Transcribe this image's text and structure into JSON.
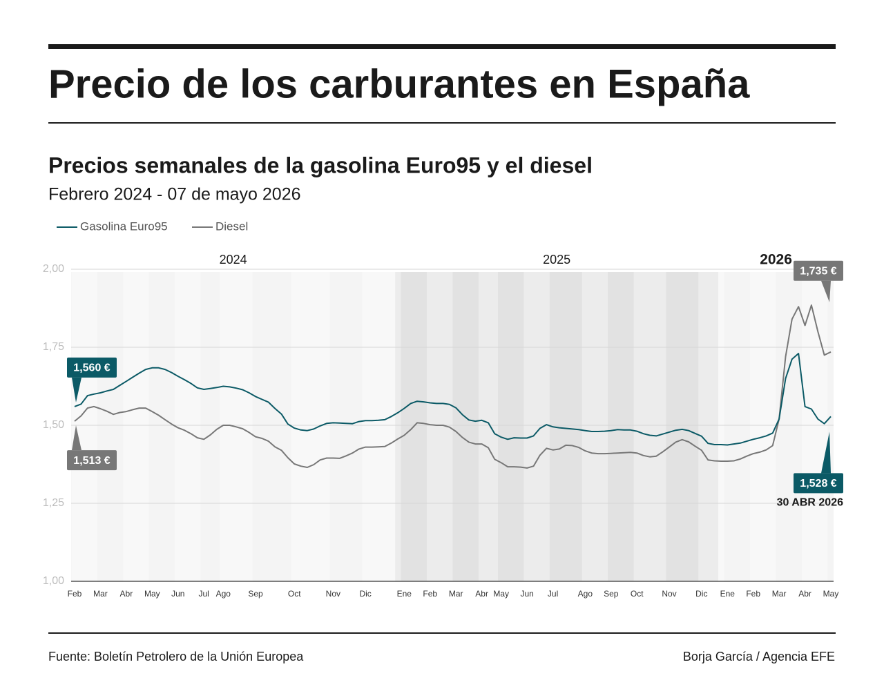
{
  "chart_data": {
    "type": "line",
    "title": "Precio de los carburantes en España",
    "subtitle": "Precios semanales de la gasolina Euro95 y el diesel",
    "period": "Febrero 2024 - 07 de mayo 2026",
    "years": [
      2024,
      2025,
      2026
    ],
    "categories": [
      "Feb",
      null,
      null,
      null,
      "Mar",
      null,
      null,
      null,
      "Abr",
      null,
      null,
      null,
      "May",
      null,
      null,
      null,
      "Jun",
      null,
      null,
      null,
      "Jul",
      null,
      null,
      "Ago",
      null,
      null,
      null,
      null,
      "Sep",
      null,
      null,
      null,
      null,
      null,
      "Oct",
      null,
      null,
      null,
      null,
      null,
      "Nov",
      null,
      null,
      null,
      null,
      "Dic",
      null,
      null,
      null,
      null,
      null,
      "Ene",
      null,
      null,
      null,
      "Feb",
      null,
      null,
      null,
      "Mar",
      null,
      null,
      null,
      "Abr",
      null,
      null,
      "May",
      null,
      null,
      null,
      "Jun",
      null,
      null,
      null,
      "Jul",
      null,
      null,
      null,
      null,
      "Ago",
      null,
      null,
      null,
      "Sep",
      null,
      null,
      null,
      "Oct",
      null,
      null,
      null,
      null,
      "Nov",
      null,
      null,
      null,
      null,
      "Dic",
      null,
      null,
      null,
      "Ene",
      null,
      null,
      null,
      "Feb",
      null,
      null,
      null,
      "Mar",
      null,
      null,
      null,
      "Abr",
      null,
      null,
      null,
      "May"
    ],
    "series": [
      {
        "name": "Gasolina Euro95",
        "color": "#0b5a66",
        "values": [
          1.56,
          1.568,
          1.595,
          1.6,
          1.604,
          1.61,
          1.615,
          1.628,
          1.641,
          1.654,
          1.667,
          1.679,
          1.684,
          1.684,
          1.679,
          1.669,
          1.657,
          1.646,
          1.634,
          1.62,
          1.615,
          1.618,
          1.621,
          1.625,
          1.623,
          1.619,
          1.614,
          1.604,
          1.592,
          1.583,
          1.574,
          1.554,
          1.536,
          1.504,
          1.491,
          1.485,
          1.483,
          1.488,
          1.498,
          1.506,
          1.508,
          1.507,
          1.506,
          1.505,
          1.512,
          1.515,
          1.515,
          1.516,
          1.518,
          1.528,
          1.54,
          1.554,
          1.57,
          1.577,
          1.575,
          1.572,
          1.57,
          1.57,
          1.567,
          1.556,
          1.534,
          1.517,
          1.513,
          1.516,
          1.508,
          1.473,
          1.462,
          1.455,
          1.46,
          1.459,
          1.459,
          1.466,
          1.49,
          1.502,
          1.495,
          1.492,
          1.49,
          1.488,
          1.486,
          1.483,
          1.48,
          1.48,
          1.481,
          1.483,
          1.486,
          1.485,
          1.485,
          1.481,
          1.473,
          1.468,
          1.466,
          1.472,
          1.478,
          1.484,
          1.487,
          1.483,
          1.474,
          1.465,
          1.442,
          1.438,
          1.438,
          1.437,
          1.44,
          1.443,
          1.449,
          1.455,
          1.46,
          1.466,
          1.475,
          1.52,
          1.65,
          1.712,
          1.73,
          1.56,
          1.552,
          1.52,
          1.505,
          1.528
        ],
        "value_labels": [
          "1,560 €",
          null,
          null,
          null,
          null,
          null,
          null,
          null,
          null,
          null,
          null,
          null,
          null,
          null,
          null,
          null,
          null,
          null,
          null,
          null,
          null,
          null,
          null,
          null,
          null,
          null,
          null,
          null,
          null,
          null,
          null,
          null,
          null,
          null,
          null,
          null,
          null,
          null,
          null,
          null,
          null,
          null,
          null,
          null,
          null,
          null,
          null,
          null,
          null,
          null,
          null,
          null,
          null,
          null,
          null,
          null,
          null,
          null,
          null,
          null,
          null,
          null,
          null,
          null,
          null,
          null,
          null,
          null,
          null,
          null,
          null,
          null,
          null,
          null,
          null,
          null,
          null,
          null,
          null,
          null,
          null,
          null,
          null,
          null,
          null,
          null,
          null,
          null,
          null,
          null,
          null,
          null,
          null,
          null,
          null,
          null,
          null,
          null,
          null,
          null,
          null,
          null,
          null,
          null,
          null,
          null,
          null,
          null,
          null,
          null,
          null,
          null,
          null,
          null,
          null,
          null,
          null,
          "1,528 €"
        ]
      },
      {
        "name": "Diesel",
        "color": "#777777",
        "values": [
          1.513,
          1.53,
          1.555,
          1.56,
          1.553,
          1.545,
          1.535,
          1.541,
          1.544,
          1.55,
          1.555,
          1.555,
          1.544,
          1.532,
          1.518,
          1.504,
          1.492,
          1.484,
          1.473,
          1.46,
          1.455,
          1.469,
          1.487,
          1.5,
          1.5,
          1.495,
          1.489,
          1.477,
          1.463,
          1.458,
          1.449,
          1.431,
          1.42,
          1.396,
          1.376,
          1.369,
          1.365,
          1.374,
          1.389,
          1.395,
          1.395,
          1.394,
          1.402,
          1.411,
          1.424,
          1.43,
          1.43,
          1.431,
          1.432,
          1.443,
          1.456,
          1.468,
          1.486,
          1.508,
          1.506,
          1.502,
          1.5,
          1.5,
          1.494,
          1.48,
          1.461,
          1.446,
          1.44,
          1.44,
          1.428,
          1.391,
          1.38,
          1.367,
          1.367,
          1.366,
          1.363,
          1.369,
          1.404,
          1.426,
          1.421,
          1.424,
          1.436,
          1.435,
          1.429,
          1.418,
          1.411,
          1.409,
          1.409,
          1.41,
          1.411,
          1.412,
          1.413,
          1.411,
          1.403,
          1.399,
          1.401,
          1.415,
          1.43,
          1.446,
          1.454,
          1.447,
          1.433,
          1.42,
          1.389,
          1.386,
          1.385,
          1.385,
          1.386,
          1.392,
          1.401,
          1.409,
          1.414,
          1.421,
          1.435,
          1.52,
          1.72,
          1.84,
          1.88,
          1.82,
          1.885,
          1.8,
          1.725,
          1.735
        ],
        "value_labels": [
          "1,513 €",
          null,
          null,
          null,
          null,
          null,
          null,
          null,
          null,
          null,
          null,
          null,
          null,
          null,
          null,
          null,
          null,
          null,
          null,
          null,
          null,
          null,
          null,
          null,
          null,
          null,
          null,
          null,
          null,
          null,
          null,
          null,
          null,
          null,
          null,
          null,
          null,
          null,
          null,
          null,
          null,
          null,
          null,
          null,
          null,
          null,
          null,
          null,
          null,
          null,
          null,
          null,
          null,
          null,
          null,
          null,
          null,
          null,
          null,
          null,
          null,
          null,
          null,
          null,
          null,
          null,
          null,
          null,
          null,
          null,
          null,
          null,
          null,
          null,
          null,
          null,
          null,
          null,
          null,
          null,
          null,
          null,
          null,
          null,
          null,
          null,
          null,
          null,
          null,
          null,
          null,
          null,
          null,
          null,
          null,
          null,
          null,
          null,
          null,
          null,
          null,
          null,
          null,
          null,
          null,
          null,
          null,
          null,
          null,
          null,
          null,
          null,
          null,
          null,
          null,
          null,
          null,
          "1,735 €"
        ]
      }
    ],
    "ylim": [
      1,
      2
    ],
    "yticks": [
      {
        "value": 1,
        "label": "1,00"
      },
      {
        "value": 1.25,
        "label": "1,25"
      },
      {
        "value": 1.5,
        "label": "1,50"
      },
      {
        "value": 1.75,
        "label": "1,75"
      },
      {
        "value": 2,
        "label": "2,00"
      }
    ],
    "grid": true,
    "legend": "top-left",
    "date_note": "30 ABR 2026",
    "source": "Fuente: Boletín Petrolero de la Unión Europea",
    "credit": "Borja García / Agencia EFE"
  }
}
